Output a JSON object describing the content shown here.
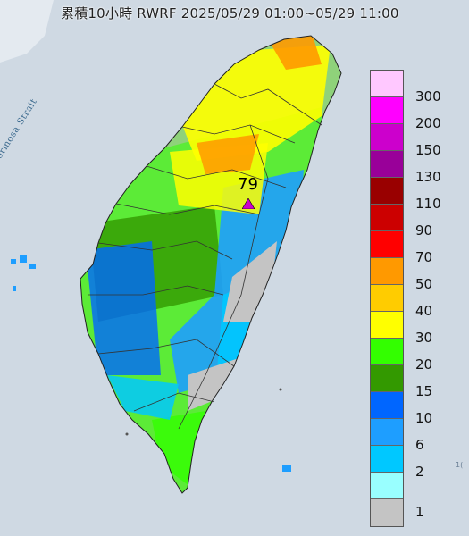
{
  "title": "累積10小時 RWRF 2025/05/29 01:00~05/29 11:00",
  "strait_label": "Formosa Strait",
  "max_value": "79",
  "edge_text": "1(",
  "legend": {
    "labels": [
      "300",
      "200",
      "150",
      "130",
      "110",
      "90",
      "70",
      "50",
      "40",
      "30",
      "20",
      "15",
      "10",
      "6",
      "2",
      "1"
    ],
    "colors": [
      "#ffc8ff",
      "#ff00ff",
      "#cc00cc",
      "#990099",
      "#990000",
      "#cc0000",
      "#ff0000",
      "#ff9900",
      "#ffcc00",
      "#ffff00",
      "#33ff00",
      "#339900",
      "#0066ff",
      "#1e9eff",
      "#00c8ff",
      "#99ffff",
      "#c4c4c4"
    ]
  },
  "colors": {
    "sea": "#cfd9e3",
    "land_base": "#8fd27a",
    "max_marker": "#cc00cc"
  }
}
